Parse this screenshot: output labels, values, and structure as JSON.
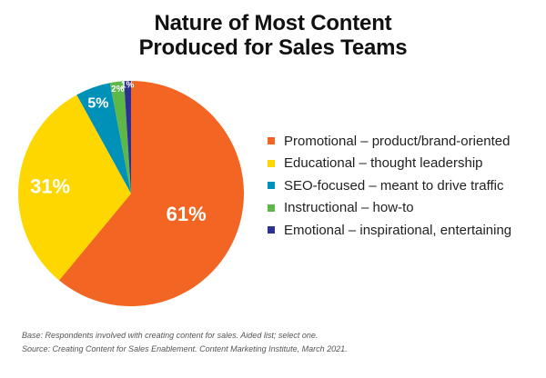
{
  "title": {
    "line1": "Nature of Most Content",
    "line2": "Produced for Sales Teams"
  },
  "chart_data": {
    "type": "pie",
    "title": "Nature of Most Content Produced for Sales Teams",
    "categories": [
      "Promotional – product/brand-oriented",
      "Educational – thought leadership",
      "SEO-focused – meant to drive traffic",
      "Instructional – how-to",
      "Emotional – inspirational, entertaining"
    ],
    "values": [
      61,
      31,
      5,
      2,
      1
    ],
    "labels": [
      "61%",
      "31%",
      "5%",
      "2%",
      "1%"
    ],
    "colors": [
      "#F26522",
      "#FFD700",
      "#0091B9",
      "#5DB848",
      "#2E3192"
    ],
    "unit": "%",
    "legend_position": "right",
    "start_angle": "12 o'clock, clockwise"
  },
  "legend": {
    "items": [
      {
        "label": "Promotional – product/brand-oriented",
        "color": "#F26522"
      },
      {
        "label": "Educational – thought leadership",
        "color": "#FFD700"
      },
      {
        "label": "SEO-focused – meant to drive traffic",
        "color": "#0091B9"
      },
      {
        "label": "Instructional – how-to",
        "color": "#5DB848"
      },
      {
        "label": "Emotional – inspirational, entertaining",
        "color": "#2E3192"
      }
    ]
  },
  "notes": {
    "base": "Base: Respondents involved with creating content for sales. Aided list; select one.",
    "source": "Source: Creating Content for Sales Enablement. Content Marketing Institute, March 2021."
  }
}
